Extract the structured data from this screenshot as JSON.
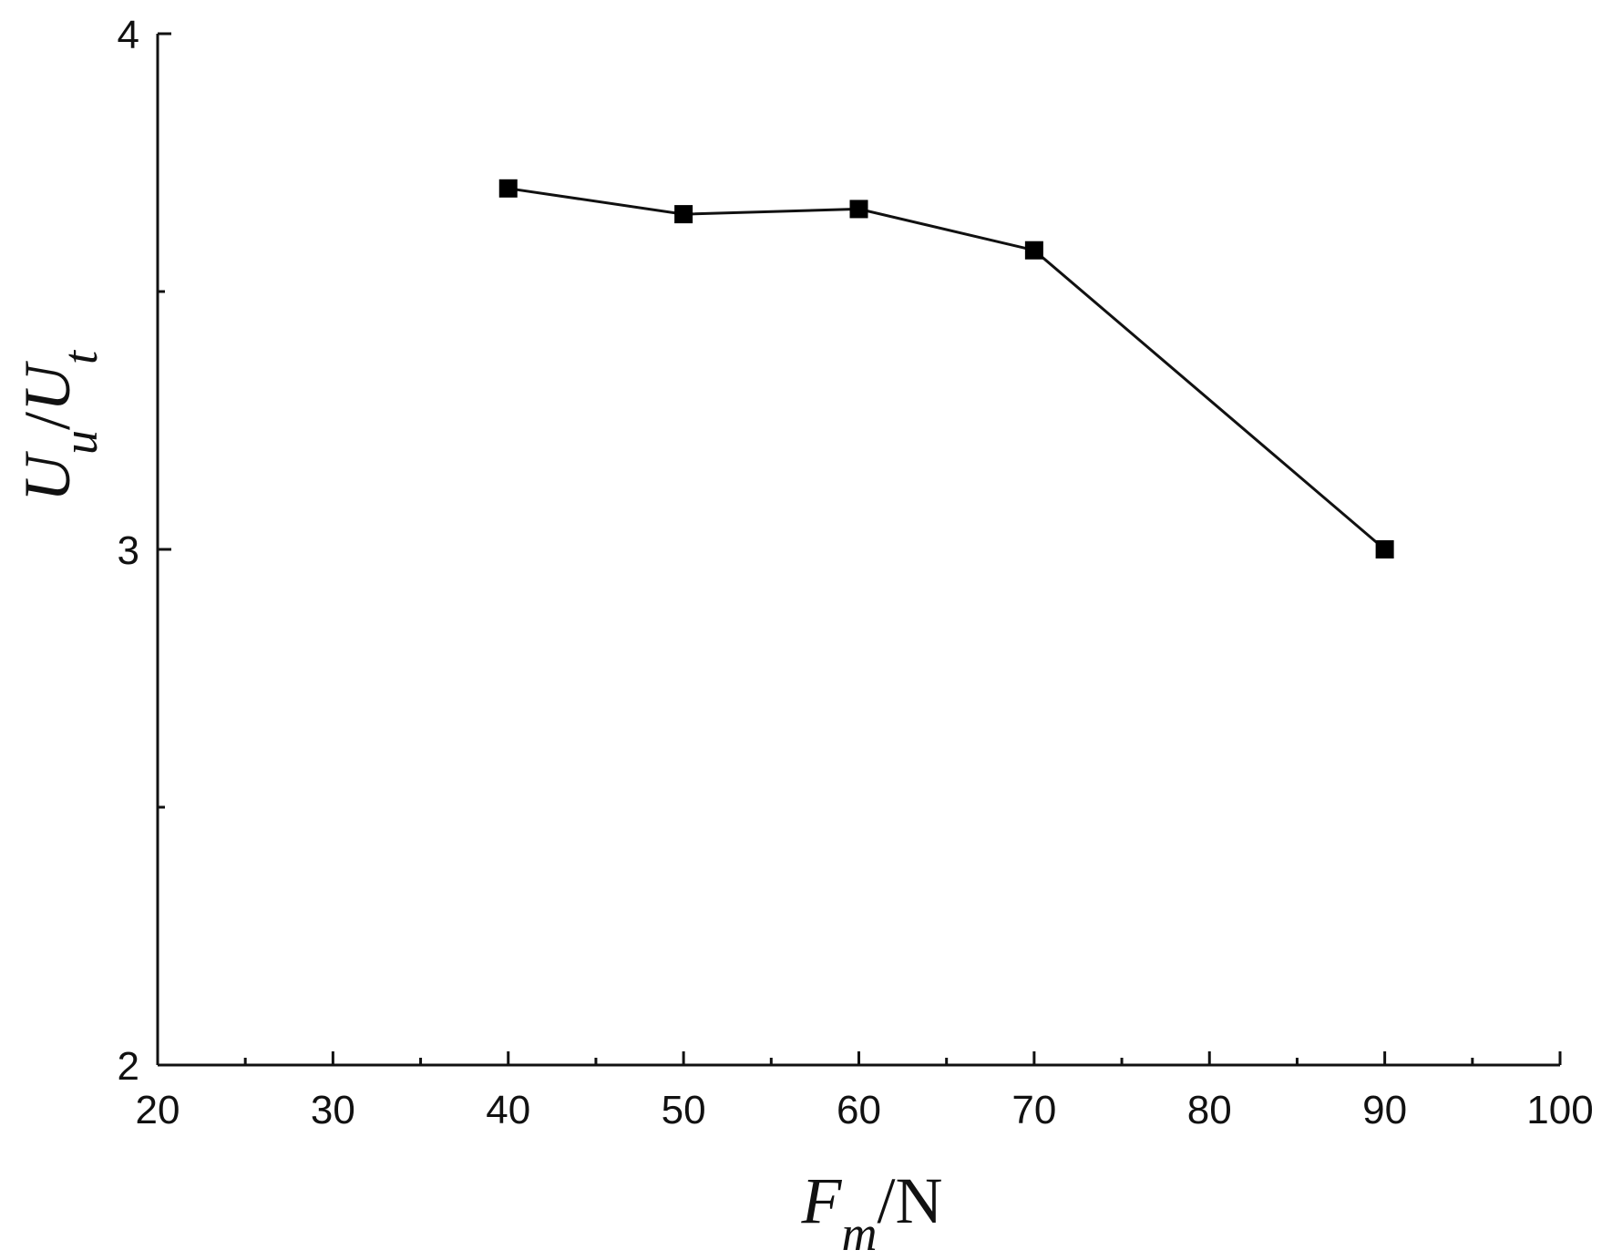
{
  "chart_data": {
    "type": "line",
    "x": [
      40,
      50,
      60,
      70,
      90
    ],
    "series": [
      {
        "values": [
          3.7,
          3.65,
          3.66,
          3.58,
          3.0
        ]
      }
    ],
    "xlim": [
      20,
      100
    ],
    "ylim": [
      2,
      4
    ],
    "x_ticks": [
      20,
      30,
      40,
      50,
      60,
      70,
      80,
      90,
      100
    ],
    "y_ticks": [
      2,
      3,
      4
    ],
    "x_tick_labels": [
      "20",
      "30",
      "40",
      "50",
      "60",
      "70",
      "80",
      "90",
      "100"
    ],
    "y_tick_labels": [
      "2",
      "3",
      "4"
    ],
    "xlabel": {
      "main": "F",
      "sub": "m",
      "tail": "/N"
    },
    "ylabel": {
      "main1": "U",
      "sub1": "u",
      "sep": "/",
      "main2": "U",
      "sub2": "t"
    },
    "grid": false,
    "marker": "square",
    "colors": {
      "line": "#111111",
      "marker": "#000000"
    }
  }
}
